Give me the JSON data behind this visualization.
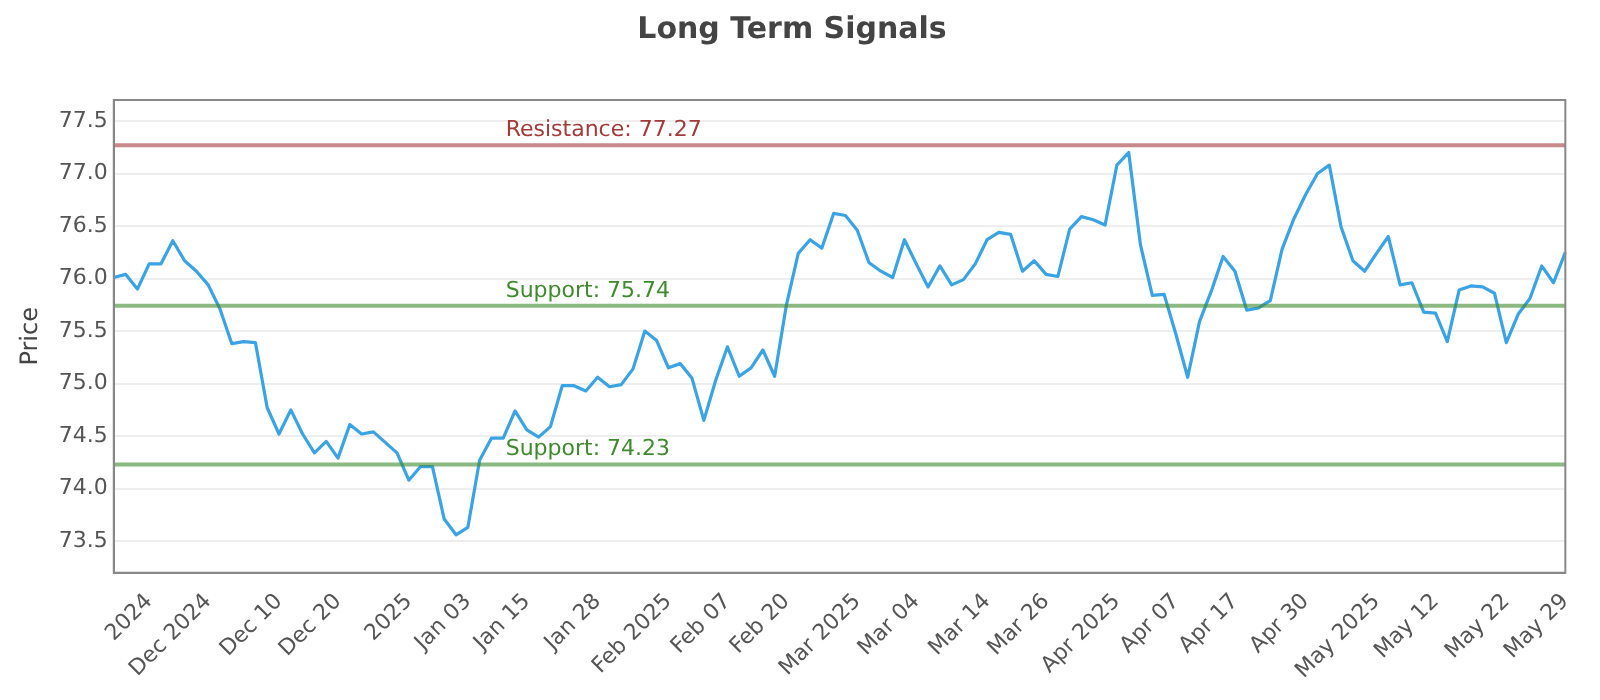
{
  "chart_data": {
    "type": "line",
    "title": "Long Term Signals",
    "ylabel": "Price",
    "categories": [
      null,
      null,
      null,
      "2024",
      null,
      null,
      null,
      null,
      "Dec 2024",
      null,
      null,
      null,
      null,
      null,
      "Dec 10",
      null,
      null,
      null,
      null,
      "Dec 20",
      null,
      null,
      null,
      null,
      null,
      "2025",
      null,
      null,
      null,
      null,
      "Jan 03",
      null,
      null,
      null,
      null,
      "Jan 15",
      null,
      null,
      null,
      null,
      null,
      "Jan 28",
      null,
      null,
      null,
      null,
      null,
      "Feb 2025",
      null,
      null,
      null,
      null,
      "Feb 07",
      null,
      null,
      null,
      null,
      "Feb 20",
      null,
      null,
      null,
      null,
      null,
      "Mar 2025",
      null,
      null,
      null,
      null,
      "Mar 04",
      null,
      null,
      null,
      null,
      null,
      "Mar 14",
      null,
      null,
      null,
      null,
      "Mar 26",
      null,
      null,
      null,
      null,
      null,
      "Apr 2025",
      null,
      null,
      null,
      null,
      "Apr 07",
      null,
      null,
      null,
      null,
      "Apr 17",
      null,
      null,
      null,
      null,
      null,
      "Apr 30",
      null,
      null,
      null,
      null,
      null,
      "May 2025",
      null,
      null,
      null,
      null,
      "May 12",
      null,
      null,
      null,
      null,
      null,
      "May 22",
      null,
      null,
      null,
      null,
      "May 29"
    ],
    "series": [
      {
        "color": "#3aa3e3",
        "values": [
          76.01,
          76.04,
          75.9,
          76.14,
          76.14,
          76.36,
          76.17,
          76.07,
          75.94,
          75.71,
          75.38,
          75.4,
          75.39,
          74.77,
          74.52,
          74.75,
          74.52,
          74.34,
          74.45,
          74.29,
          74.61,
          74.52,
          74.54,
          74.44,
          74.34,
          74.08,
          74.21,
          74.21,
          73.71,
          73.56,
          73.63,
          74.27,
          74.48,
          74.48,
          74.74,
          74.56,
          74.49,
          74.59,
          74.98,
          74.98,
          74.93,
          75.06,
          74.97,
          74.99,
          75.14,
          75.5,
          75.41,
          75.15,
          75.19,
          75.05,
          74.65,
          75.03,
          75.35,
          75.07,
          75.15,
          75.32,
          75.07,
          75.75,
          76.24,
          76.37,
          76.29,
          76.62,
          76.6,
          76.46,
          76.15,
          76.07,
          76.01,
          76.37,
          76.14,
          75.92,
          76.12,
          75.94,
          75.99,
          76.14,
          76.37,
          76.44,
          76.42,
          76.07,
          76.17,
          76.04,
          76.02,
          76.47,
          76.59,
          76.56,
          76.51,
          77.08,
          77.2,
          76.32,
          75.84,
          75.85,
          75.47,
          75.06,
          75.59,
          75.88,
          76.21,
          76.07,
          75.7,
          75.72,
          75.79,
          76.28,
          76.57,
          76.8,
          77.0,
          77.08,
          76.49,
          76.17,
          76.07,
          76.24,
          76.4,
          75.94,
          75.96,
          75.68,
          75.67,
          75.4,
          75.89,
          75.93,
          75.92,
          75.86,
          75.39,
          75.66,
          75.81,
          76.12,
          75.96,
          76.25
        ]
      }
    ],
    "ylim": [
      73.2,
      77.7
    ],
    "yticks": [
      73.5,
      {
        "value": 74,
        "label": "74.0"
      },
      74.5,
      {
        "value": 75,
        "label": "75.0"
      },
      75.5,
      {
        "value": 76,
        "label": "76.0"
      },
      76.5,
      {
        "value": 77,
        "label": "77.0"
      },
      77.5
    ],
    "ref_lines": [
      {
        "axis": "y",
        "value": 77.27,
        "label": "Resistance: 77.27",
        "color": "#a33a3a"
      },
      {
        "axis": "y",
        "value": 75.74,
        "label": "Support: 75.74",
        "color": "#3f8a2e"
      },
      {
        "axis": "y",
        "value": 74.23,
        "label": "Support: 74.23",
        "color": "#3f8a2e"
      }
    ],
    "grid": "y",
    "legend": false,
    "marker": "none",
    "line_style": "solid"
  }
}
